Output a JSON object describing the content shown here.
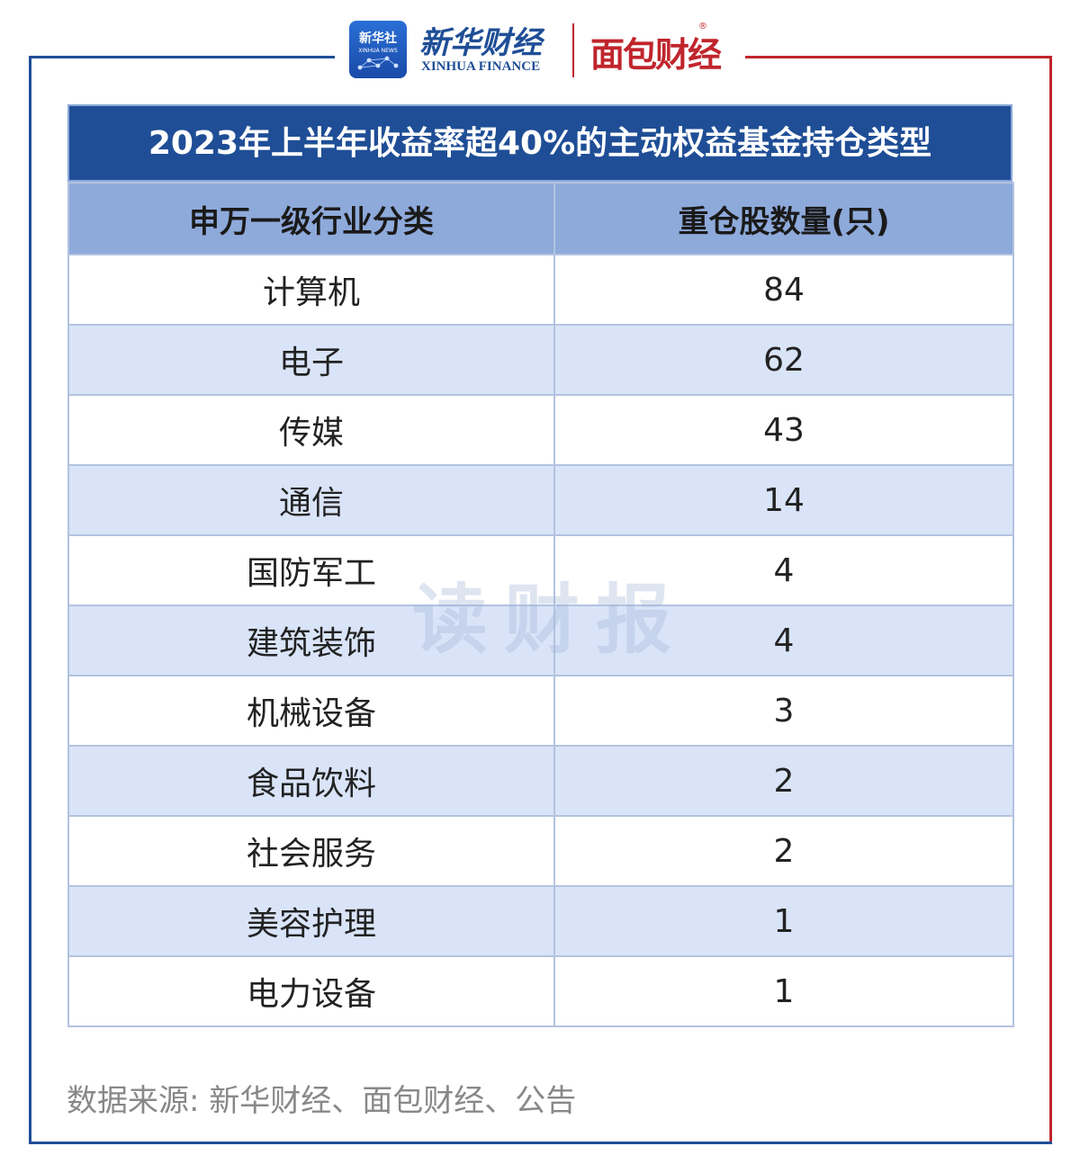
{
  "colors": {
    "brand_blue": "#1f4e96",
    "brand_red": "#c0252c",
    "header_row": "#8eaadb",
    "stripe_row": "#d9e4f8"
  },
  "logos": {
    "xinhua_badge_line1": "新华社",
    "xinhua_badge_line2": "XINHUA NEWS",
    "xinhua_finance_cn": "新华财经",
    "xinhua_finance_en": "XINHUA FINANCE",
    "mianbao": "面包财经",
    "registered": "®"
  },
  "table": {
    "title": "2023年上半年收益率超40%的主动权益基金持仓类型",
    "headers": [
      "申万一级行业分类",
      "重仓股数量(只)"
    ],
    "rows": [
      {
        "industry": "计算机",
        "count": "84"
      },
      {
        "industry": "电子",
        "count": "62"
      },
      {
        "industry": "传媒",
        "count": "43"
      },
      {
        "industry": "通信",
        "count": "14"
      },
      {
        "industry": "国防军工",
        "count": "4"
      },
      {
        "industry": "建筑装饰",
        "count": "4"
      },
      {
        "industry": "机械设备",
        "count": "3"
      },
      {
        "industry": "食品饮料",
        "count": "2"
      },
      {
        "industry": "社会服务",
        "count": "2"
      },
      {
        "industry": "美容护理",
        "count": "1"
      },
      {
        "industry": "电力设备",
        "count": "1"
      }
    ]
  },
  "watermark": "读财报",
  "source": "数据来源: 新华财经、面包财经、公告"
}
